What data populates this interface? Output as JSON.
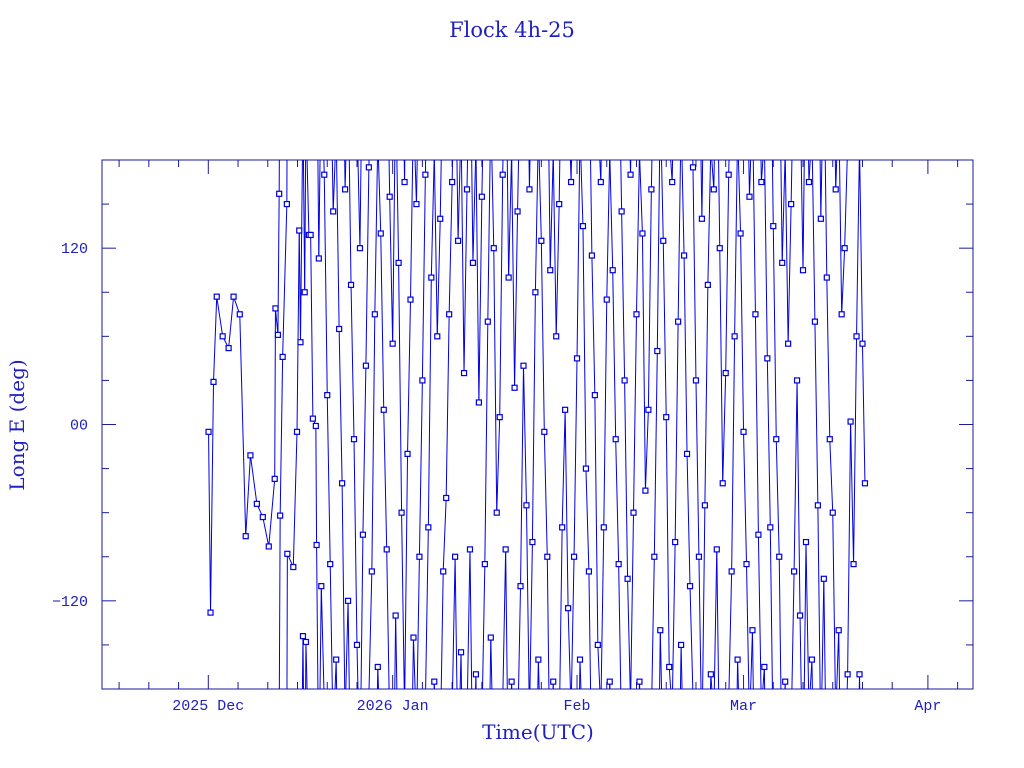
{
  "chart_data": {
    "type": "line",
    "title": "Flock 4h-25",
    "xlabel": "Time(UTC)",
    "ylabel": "Long E (deg)",
    "xlim": [
      "2025-11-13T03",
      "2026-04-08T14"
    ],
    "ylim": [
      -180,
      180
    ],
    "y_ticks": [
      {
        "value": -120,
        "label": "−120"
      },
      {
        "value": 0,
        "label": "00"
      },
      {
        "value": 120,
        "label": "120"
      }
    ],
    "y_minor_step": 30,
    "x_ticks": [
      {
        "date": "2025-12-01T00",
        "label": "2025 Dec"
      },
      {
        "date": "2026-01-01T00",
        "label": "2026 Jan"
      },
      {
        "date": "2026-02-01T00",
        "label": "Feb"
      },
      {
        "date": "2026-03-01T00",
        "label": "Mar"
      },
      {
        "date": "2026-04-01T00",
        "label": "Apr"
      }
    ],
    "grid": false,
    "markers": "square",
    "color": "#0000e0",
    "axis_color": "#1a1a9a",
    "series": [
      {
        "points": [
          [
            "2025-12-01T01",
            -5
          ],
          [
            "2025-12-01T09",
            -128
          ],
          [
            "2025-12-01T21",
            29
          ],
          [
            "2025-12-02T10",
            87
          ],
          [
            "2025-12-03T10",
            60
          ],
          [
            "2025-12-04T10",
            52
          ],
          [
            "2025-12-05T06",
            87
          ],
          [
            "2025-12-06T07",
            75
          ],
          [
            "2025-12-07T07",
            -76
          ],
          [
            "2025-12-08T02",
            -21
          ],
          [
            "2025-12-09T04",
            -54
          ],
          [
            "2025-12-10T04",
            -63
          ],
          [
            "2025-12-11T04",
            -83
          ],
          [
            "2025-12-12T04",
            -37
          ],
          [
            "2025-12-12T07",
            79
          ],
          [
            "2025-12-12T17",
            61
          ],
          [
            "2025-12-12T22",
            157
          ],
          [
            "2025-12-13T02",
            -62
          ],
          [
            "2025-12-13T12",
            46
          ],
          [
            "2025-12-14T05",
            150
          ],
          [
            "2025-12-14T07",
            -88
          ],
          [
            "2025-12-15T07",
            -97
          ],
          [
            "2025-12-15T22",
            -5
          ],
          [
            "2025-12-16T07",
            132
          ],
          [
            "2025-12-16T12",
            56
          ],
          [
            "2025-12-16T22",
            -144
          ],
          [
            "2025-12-17T05",
            90
          ],
          [
            "2025-12-17T10",
            -148
          ],
          [
            "2025-12-17T22",
            129
          ],
          [
            "2025-12-18T05",
            129
          ],
          [
            "2025-12-18T14",
            4
          ],
          [
            "2025-12-19T02",
            -1
          ],
          [
            "2025-12-19T05",
            -82
          ],
          [
            "2025-12-19T14",
            113
          ],
          [
            "2025-12-20T00",
            -110
          ],
          [
            "2025-12-20T12",
            170
          ],
          [
            "2025-12-21T00",
            20
          ],
          [
            "2025-12-21T12",
            -95
          ],
          [
            "2025-12-22T00",
            145
          ],
          [
            "2025-12-22T12",
            -160
          ],
          [
            "2025-12-23T00",
            65
          ],
          [
            "2025-12-23T12",
            -40
          ],
          [
            "2025-12-24T00",
            160
          ],
          [
            "2025-12-24T12",
            -120
          ],
          [
            "2025-12-25T00",
            95
          ],
          [
            "2025-12-25T12",
            -10
          ],
          [
            "2025-12-26T00",
            -150
          ],
          [
            "2025-12-26T12",
            120
          ],
          [
            "2025-12-27T00",
            -75
          ],
          [
            "2025-12-27T12",
            40
          ],
          [
            "2025-12-28T00",
            175
          ],
          [
            "2025-12-28T12",
            -100
          ],
          [
            "2025-12-29T00",
            75
          ],
          [
            "2025-12-29T12",
            -165
          ],
          [
            "2025-12-30T00",
            130
          ],
          [
            "2025-12-30T12",
            10
          ],
          [
            "2025-12-31T00",
            -85
          ],
          [
            "2025-12-31T12",
            155
          ],
          [
            "2026-01-01T00",
            55
          ],
          [
            "2026-01-01T12",
            -130
          ],
          [
            "2026-01-02T00",
            110
          ],
          [
            "2026-01-02T12",
            -60
          ],
          [
            "2026-01-03T00",
            165
          ],
          [
            "2026-01-03T12",
            -20
          ],
          [
            "2026-01-04T00",
            85
          ],
          [
            "2026-01-04T12",
            -145
          ],
          [
            "2026-01-05T00",
            150
          ],
          [
            "2026-01-05T12",
            -90
          ],
          [
            "2026-01-06T00",
            30
          ],
          [
            "2026-01-06T12",
            170
          ],
          [
            "2026-01-07T00",
            -70
          ],
          [
            "2026-01-07T12",
            100
          ],
          [
            "2026-01-08T00",
            -175
          ],
          [
            "2026-01-08T12",
            60
          ],
          [
            "2026-01-09T00",
            140
          ],
          [
            "2026-01-09T12",
            -100
          ],
          [
            "2026-01-10T00",
            -50
          ],
          [
            "2026-01-10T12",
            75
          ],
          [
            "2026-01-11T00",
            165
          ],
          [
            "2026-01-11T12",
            -90
          ],
          [
            "2026-01-12T00",
            125
          ],
          [
            "2026-01-12T12",
            -155
          ],
          [
            "2026-01-13T00",
            35
          ],
          [
            "2026-01-13T12",
            160
          ],
          [
            "2026-01-14T00",
            -85
          ],
          [
            "2026-01-14T12",
            110
          ],
          [
            "2026-01-15T00",
            -170
          ],
          [
            "2026-01-15T12",
            15
          ],
          [
            "2026-01-16T00",
            155
          ],
          [
            "2026-01-16T12",
            -95
          ],
          [
            "2026-01-17T00",
            70
          ],
          [
            "2026-01-17T12",
            -145
          ],
          [
            "2026-01-18T00",
            120
          ],
          [
            "2026-01-18T12",
            -60
          ],
          [
            "2026-01-19T00",
            5
          ],
          [
            "2026-01-19T12",
            170
          ],
          [
            "2026-01-20T00",
            -85
          ],
          [
            "2026-01-20T12",
            100
          ],
          [
            "2026-01-21T00",
            -175
          ],
          [
            "2026-01-21T12",
            25
          ],
          [
            "2026-01-22T00",
            145
          ],
          [
            "2026-01-22T12",
            -110
          ],
          [
            "2026-01-23T00",
            40
          ],
          [
            "2026-01-23T12",
            -55
          ],
          [
            "2026-01-24T00",
            160
          ],
          [
            "2026-01-24T12",
            -80
          ],
          [
            "2026-01-25T00",
            90
          ],
          [
            "2026-01-25T12",
            -160
          ],
          [
            "2026-01-26T00",
            125
          ],
          [
            "2026-01-26T12",
            -5
          ],
          [
            "2026-01-27T00",
            -90
          ],
          [
            "2026-01-27T12",
            105
          ],
          [
            "2026-01-28T00",
            -175
          ],
          [
            "2026-01-28T12",
            60
          ],
          [
            "2026-01-29T00",
            150
          ],
          [
            "2026-01-29T12",
            -70
          ],
          [
            "2026-01-30T00",
            10
          ],
          [
            "2026-01-30T12",
            -125
          ],
          [
            "2026-01-31T00",
            165
          ],
          [
            "2026-01-31T12",
            -90
          ],
          [
            "2026-02-01T00",
            45
          ],
          [
            "2026-02-01T12",
            -160
          ],
          [
            "2026-02-02T00",
            135
          ],
          [
            "2026-02-02T12",
            -30
          ],
          [
            "2026-02-03T00",
            -100
          ],
          [
            "2026-02-03T12",
            115
          ],
          [
            "2026-02-04T00",
            20
          ],
          [
            "2026-02-04T12",
            -150
          ],
          [
            "2026-02-05T00",
            165
          ],
          [
            "2026-02-05T12",
            -70
          ],
          [
            "2026-02-06T00",
            85
          ],
          [
            "2026-02-06T12",
            -175
          ],
          [
            "2026-02-07T00",
            105
          ],
          [
            "2026-02-07T12",
            -10
          ],
          [
            "2026-02-08T00",
            -95
          ],
          [
            "2026-02-08T12",
            145
          ],
          [
            "2026-02-09T00",
            30
          ],
          [
            "2026-02-09T12",
            -105
          ],
          [
            "2026-02-10T00",
            170
          ],
          [
            "2026-02-10T12",
            -60
          ],
          [
            "2026-02-11T00",
            75
          ],
          [
            "2026-02-11T12",
            -175
          ],
          [
            "2026-02-12T00",
            130
          ],
          [
            "2026-02-12T12",
            -45
          ],
          [
            "2026-02-13T00",
            10
          ],
          [
            "2026-02-13T12",
            160
          ],
          [
            "2026-02-14T00",
            -90
          ],
          [
            "2026-02-14T12",
            50
          ],
          [
            "2026-02-15T00",
            -140
          ],
          [
            "2026-02-15T12",
            125
          ],
          [
            "2026-02-16T00",
            5
          ],
          [
            "2026-02-16T12",
            -165
          ],
          [
            "2026-02-17T00",
            165
          ],
          [
            "2026-02-17T12",
            -80
          ],
          [
            "2026-02-18T00",
            70
          ],
          [
            "2026-02-18T12",
            -150
          ],
          [
            "2026-02-19T00",
            115
          ],
          [
            "2026-02-19T12",
            -20
          ],
          [
            "2026-02-20T00",
            -110
          ],
          [
            "2026-02-20T12",
            175
          ],
          [
            "2026-02-21T00",
            30
          ],
          [
            "2026-02-21T12",
            -90
          ],
          [
            "2026-02-22T00",
            140
          ],
          [
            "2026-02-22T12",
            -55
          ],
          [
            "2026-02-23T00",
            95
          ],
          [
            "2026-02-23T12",
            -170
          ],
          [
            "2026-02-24T00",
            160
          ],
          [
            "2026-02-24T12",
            -85
          ],
          [
            "2026-02-25T00",
            120
          ],
          [
            "2026-02-25T12",
            -40
          ],
          [
            "2026-02-26T00",
            35
          ],
          [
            "2026-02-26T12",
            170
          ],
          [
            "2026-02-27T00",
            -100
          ],
          [
            "2026-02-27T12",
            60
          ],
          [
            "2026-02-28T00",
            -160
          ],
          [
            "2026-02-28T12",
            130
          ],
          [
            "2026-03-01T00",
            -5
          ],
          [
            "2026-03-01T12",
            -95
          ],
          [
            "2026-03-02T00",
            155
          ],
          [
            "2026-03-02T12",
            -140
          ],
          [
            "2026-03-03T00",
            75
          ],
          [
            "2026-03-03T12",
            -75
          ],
          [
            "2026-03-04T00",
            165
          ],
          [
            "2026-03-04T12",
            -165
          ],
          [
            "2026-03-05T00",
            45
          ],
          [
            "2026-03-05T12",
            -70
          ],
          [
            "2026-03-06T00",
            135
          ],
          [
            "2026-03-06T12",
            -10
          ],
          [
            "2026-03-07T00",
            -90
          ],
          [
            "2026-03-07T12",
            110
          ],
          [
            "2026-03-08T00",
            -175
          ],
          [
            "2026-03-08T12",
            55
          ],
          [
            "2026-03-09T00",
            150
          ],
          [
            "2026-03-09T12",
            -100
          ],
          [
            "2026-03-10T00",
            30
          ],
          [
            "2026-03-10T12",
            -130
          ],
          [
            "2026-03-11T00",
            105
          ],
          [
            "2026-03-11T12",
            -80
          ],
          [
            "2026-03-12T00",
            165
          ],
          [
            "2026-03-12T12",
            -160
          ],
          [
            "2026-03-13T00",
            70
          ],
          [
            "2026-03-13T12",
            -55
          ],
          [
            "2026-03-14T00",
            140
          ],
          [
            "2026-03-14T12",
            -105
          ],
          [
            "2026-03-15T00",
            100
          ],
          [
            "2026-03-15T12",
            -10
          ],
          [
            "2026-03-16T00",
            -60
          ],
          [
            "2026-03-16T12",
            160
          ],
          [
            "2026-03-17T00",
            -140
          ],
          [
            "2026-03-17T12",
            75
          ],
          [
            "2026-03-18T00",
            120
          ],
          [
            "2026-03-18T12",
            -170
          ],
          [
            "2026-03-19T00",
            2
          ],
          [
            "2026-03-19T12",
            -95
          ],
          [
            "2026-03-20T00",
            60
          ],
          [
            "2026-03-20T12",
            -170
          ],
          [
            "2026-03-21T00",
            55
          ],
          [
            "2026-03-21T10",
            -40
          ]
        ]
      }
    ]
  }
}
